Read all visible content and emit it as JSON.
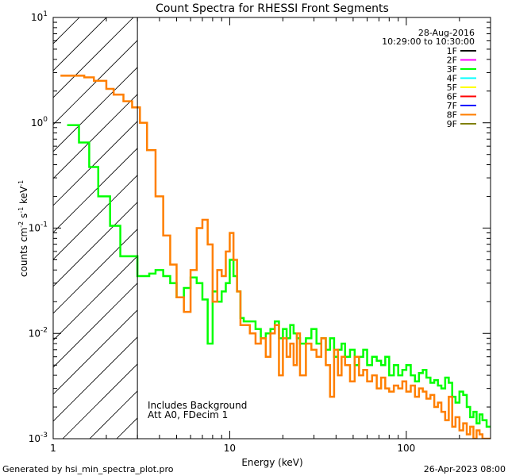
{
  "chart_data": {
    "type": "line",
    "title": "Count Spectra for RHESSI Front Segments",
    "xlabel": "Energy (keV)",
    "ylabel_parts": [
      "counts cm",
      "-2",
      " s",
      "-1",
      " keV",
      "-1"
    ],
    "x_scale": "log",
    "y_scale": "log",
    "xlim": [
      1,
      300
    ],
    "ylim": [
      0.001,
      10
    ],
    "x_ticks": [
      {
        "value": 1,
        "label": "1"
      },
      {
        "value": 10,
        "label": "10"
      },
      {
        "value": 100,
        "label": "100"
      }
    ],
    "y_ticks": [
      {
        "value": 0.001,
        "base": "10",
        "exp": "-3"
      },
      {
        "value": 0.01,
        "base": "10",
        "exp": "-2"
      },
      {
        "value": 0.1,
        "base": "10",
        "exp": "-1"
      },
      {
        "value": 1,
        "base": "10",
        "exp": "0"
      },
      {
        "value": 10,
        "base": "10",
        "exp": "1"
      }
    ],
    "hatched_region": {
      "x_from": 1,
      "x_to": 3
    },
    "threshold_line_x": 3,
    "date": "28-Aug-2016",
    "time_range": "10:29:00 to 10:30:00",
    "legend": [
      {
        "label": "1F",
        "color": "#000000"
      },
      {
        "label": "2F",
        "color": "#ff00ff"
      },
      {
        "label": "3F",
        "color": "#00ff00"
      },
      {
        "label": "4F",
        "color": "#00ffff"
      },
      {
        "label": "5F",
        "color": "#ffff00"
      },
      {
        "label": "6F",
        "color": "#ff0000"
      },
      {
        "label": "7F",
        "color": "#0000ff"
      },
      {
        "label": "8F",
        "color": "#ff7f00"
      },
      {
        "label": "9F",
        "color": "#808000"
      }
    ],
    "annotations": [
      "Includes Background",
      "Att A0, FDecim 1"
    ],
    "series": [
      {
        "name": "3F",
        "color": "#00ff00",
        "step": true,
        "x": [
          1.2,
          1.4,
          1.6,
          1.8,
          2.1,
          2.4,
          2.7,
          3.0,
          3.5,
          3.8,
          4.2,
          4.6,
          5.0,
          5.5,
          6.0,
          6.5,
          7.0,
          7.5,
          8.0,
          8.5,
          9.0,
          9.5,
          10.0,
          10.5,
          11.0,
          11.5,
          12.0,
          13.0,
          14.0,
          15.0,
          16.0,
          17.0,
          18.0,
          19.0,
          20.0,
          21.0,
          22.0,
          23.0,
          24.0,
          25.0,
          27.0,
          29.0,
          31.0,
          33.0,
          35.0,
          37.0,
          39.0,
          41.0,
          43.0,
          45.0,
          48.0,
          51.0,
          54.0,
          57.0,
          60.0,
          64.0,
          68.0,
          72.0,
          76.0,
          80.0,
          85.0,
          90.0,
          95.0,
          100.0,
          106.0,
          112.0,
          118.0,
          124.0,
          130.0,
          137.0,
          144.0,
          151.0,
          158.0,
          166.0,
          174.0,
          182.0,
          190.0,
          200.0,
          210.0,
          220.0,
          230.0,
          240.0,
          250.0,
          260.0,
          270.0,
          285.0
        ],
        "y": [
          0.95,
          0.65,
          0.38,
          0.2,
          0.105,
          0.054,
          0.054,
          0.035,
          0.037,
          0.04,
          0.035,
          0.03,
          0.022,
          0.027,
          0.034,
          0.03,
          0.021,
          0.008,
          0.025,
          0.02,
          0.025,
          0.03,
          0.05,
          0.035,
          0.025,
          0.014,
          0.013,
          0.013,
          0.011,
          0.009,
          0.01,
          0.011,
          0.013,
          0.009,
          0.011,
          0.009,
          0.012,
          0.01,
          0.009,
          0.008,
          0.009,
          0.011,
          0.008,
          0.009,
          0.007,
          0.009,
          0.006,
          0.007,
          0.008,
          0.006,
          0.007,
          0.005,
          0.006,
          0.007,
          0.005,
          0.006,
          0.0055,
          0.005,
          0.006,
          0.004,
          0.005,
          0.004,
          0.0045,
          0.005,
          0.004,
          0.0035,
          0.0042,
          0.0045,
          0.0038,
          0.0034,
          0.0036,
          0.0032,
          0.003,
          0.0038,
          0.0034,
          0.0025,
          0.0022,
          0.0028,
          0.0026,
          0.002,
          0.0016,
          0.0018,
          0.0014,
          0.0017,
          0.0015,
          0.0013
        ]
      },
      {
        "name": "8F",
        "color": "#ff7f00",
        "step": true,
        "x": [
          1.1,
          1.3,
          1.5,
          1.7,
          2.0,
          2.2,
          2.5,
          2.8,
          3.1,
          3.4,
          3.8,
          4.2,
          4.6,
          5.0,
          5.5,
          6.0,
          6.5,
          7.0,
          7.5,
          8.0,
          8.5,
          9.0,
          9.5,
          10.0,
          10.5,
          11.0,
          11.5,
          12.0,
          13.0,
          14.0,
          15.0,
          16.0,
          17.0,
          18.0,
          19.0,
          20.0,
          21.0,
          22.0,
          23.0,
          24.0,
          25.0,
          27.0,
          29.0,
          31.0,
          33.0,
          35.0,
          37.0,
          39.0,
          41.0,
          43.0,
          45.0,
          48.0,
          51.0,
          54.0,
          57.0,
          60.0,
          64.0,
          68.0,
          72.0,
          76.0,
          80.0,
          85.0,
          90.0,
          95.0,
          100.0,
          106.0,
          112.0,
          118.0,
          124.0,
          130.0,
          137.0,
          144.0,
          151.0,
          158.0,
          166.0,
          174.0,
          182.0,
          190.0,
          200.0,
          210.0,
          220.0,
          230.0,
          240.0,
          250.0,
          260.0,
          270.0,
          285.0
        ],
        "y": [
          2.8,
          2.8,
          2.7,
          2.5,
          2.1,
          1.85,
          1.6,
          1.4,
          1.0,
          0.55,
          0.2,
          0.085,
          0.045,
          0.022,
          0.016,
          0.04,
          0.1,
          0.12,
          0.07,
          0.02,
          0.04,
          0.035,
          0.06,
          0.09,
          0.05,
          0.025,
          0.012,
          0.012,
          0.01,
          0.008,
          0.009,
          0.006,
          0.01,
          0.012,
          0.004,
          0.009,
          0.006,
          0.008,
          0.005,
          0.01,
          0.004,
          0.008,
          0.007,
          0.006,
          0.009,
          0.005,
          0.0025,
          0.007,
          0.004,
          0.006,
          0.005,
          0.0035,
          0.006,
          0.004,
          0.0045,
          0.0035,
          0.004,
          0.003,
          0.0038,
          0.003,
          0.0028,
          0.0032,
          0.003,
          0.0035,
          0.0028,
          0.0032,
          0.0025,
          0.003,
          0.0028,
          0.0024,
          0.0026,
          0.002,
          0.0022,
          0.0018,
          0.0015,
          0.0025,
          0.0013,
          0.0016,
          0.0012,
          0.0014,
          0.0011,
          0.0013,
          0.001,
          0.0012,
          0.0011,
          0.001,
          0.001
        ]
      }
    ]
  },
  "footer": {
    "generated_by": "Generated by hsi_min_spectra_plot.pro",
    "timestamp": "26-Apr-2023 08:00"
  }
}
